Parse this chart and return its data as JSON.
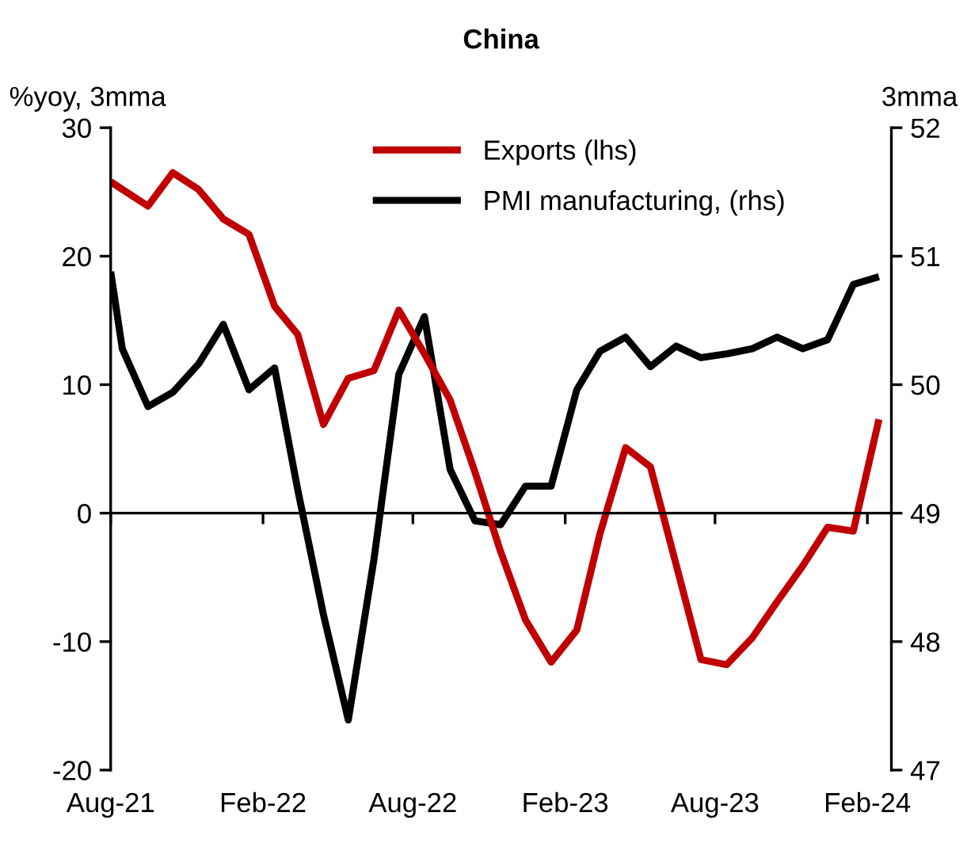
{
  "chart_data": {
    "type": "line",
    "title": "China",
    "ylabel": "%yoy, 3mma",
    "y2label": "3mma",
    "x": [
      "2021-08-01",
      "2021-08-15",
      "2021-09-15",
      "2021-10-15",
      "2021-11-15",
      "2021-12-15",
      "2022-01-15",
      "2022-02-15",
      "2022-03-15",
      "2022-04-15",
      "2022-05-15",
      "2022-06-15",
      "2022-07-15",
      "2022-08-15",
      "2022-09-15",
      "2022-10-15",
      "2022-11-15",
      "2022-12-15",
      "2023-01-15",
      "2023-02-15",
      "2023-03-15",
      "2023-04-15",
      "2023-05-15",
      "2023-06-15",
      "2023-07-15",
      "2023-08-15",
      "2023-09-15",
      "2023-10-15",
      "2023-11-15",
      "2023-12-15",
      "2024-01-15",
      "2024-02-15"
    ],
    "series": [
      {
        "name": "Exports (lhs)",
        "color": "#c00000",
        "values": [
          25.8,
          25.2,
          23.9,
          26.5,
          25.2,
          22.9,
          21.7,
          16.1,
          13.9,
          6.9,
          10.5,
          11.1,
          15.8,
          12.4,
          8.8,
          3.2,
          -3.0,
          -8.3,
          -11.6,
          -9.1,
          -1.6,
          5.1,
          3.6,
          -4.0,
          -11.4,
          -11.8,
          -9.7,
          -6.9,
          -4.1,
          -1.1,
          -1.4,
          7.3
        ]
      },
      {
        "name": "PMI manufacturing, (rhs)",
        "color": "#000000",
        "axis": "y2",
        "values": [
          50.88,
          50.28,
          49.83,
          49.94,
          50.16,
          50.47,
          49.96,
          50.13,
          49.18,
          48.21,
          47.39,
          48.64,
          50.08,
          50.53,
          49.34,
          48.94,
          48.91,
          49.21,
          49.21,
          49.96,
          50.26,
          50.37,
          50.14,
          50.3,
          50.21,
          50.24,
          50.28,
          50.37,
          50.28,
          50.35,
          50.78,
          50.84
        ]
      }
    ],
    "xlim": [
      "2021-08-01",
      "2024-03-01"
    ],
    "xticks": [
      {
        "value": "2021-08-01",
        "label": "Aug-21"
      },
      {
        "value": "2022-02-01",
        "label": "Feb-22"
      },
      {
        "value": "2022-08-01",
        "label": "Aug-22"
      },
      {
        "value": "2023-02-01",
        "label": "Feb-23"
      },
      {
        "value": "2023-08-01",
        "label": "Aug-23"
      },
      {
        "value": "2024-02-01",
        "label": "Feb-24"
      }
    ],
    "ylim": [
      -20,
      30
    ],
    "yticks": [
      -20,
      -10,
      0,
      10,
      20,
      30
    ],
    "y2lim": [
      47,
      52
    ],
    "y2ticks": [
      47,
      48,
      49,
      50,
      51,
      52
    ],
    "legend": "top",
    "marker": "none",
    "line_style": "solid"
  }
}
